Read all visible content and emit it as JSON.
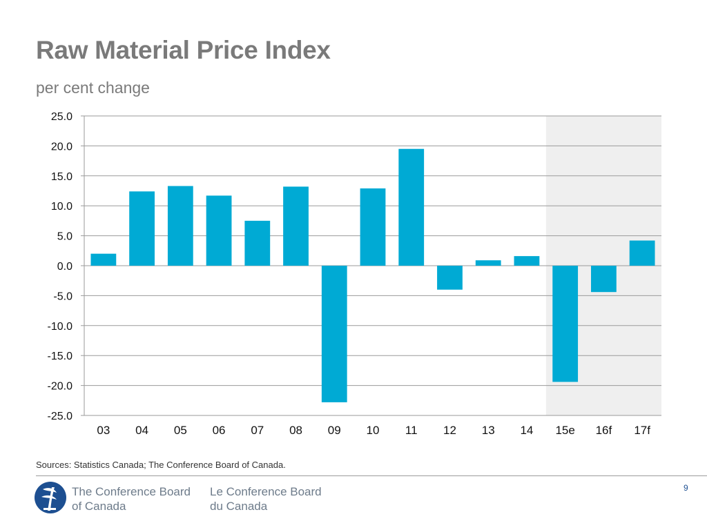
{
  "slide": {
    "title": "Raw Material Price Index",
    "subtitle": "per cent change",
    "sources": "Sources: Statistics Canada; The Conference Board of Canada.",
    "page_number": "9"
  },
  "organization": {
    "english_line1": "The Conference Board",
    "english_line2": "of Canada",
    "french_line1": "Le Conference Board",
    "french_line2": "du Canada"
  },
  "colors": {
    "bar": "#00aad4",
    "forecast_shade": "#efefef",
    "gridline": "#9a9a9a",
    "title": "#7a7a7a",
    "brand_blue": "#1d4f91"
  },
  "chart_data": {
    "type": "bar",
    "title": "Raw Material Price Index",
    "subtitle": "per cent change",
    "xlabel": "",
    "ylabel": "",
    "categories": [
      "03",
      "04",
      "05",
      "06",
      "07",
      "08",
      "09",
      "10",
      "11",
      "12",
      "13",
      "14",
      "15e",
      "16f",
      "17f"
    ],
    "values": [
      2.0,
      12.4,
      13.3,
      11.7,
      7.5,
      13.2,
      -22.8,
      12.9,
      19.5,
      -4.0,
      0.9,
      1.6,
      -19.4,
      -4.4,
      4.2
    ],
    "ylim": [
      -25,
      25
    ],
    "yticks": [
      25,
      20,
      15,
      10,
      5,
      0,
      -5,
      -10,
      -15,
      -20,
      -25
    ],
    "ytick_labels": [
      "25.0",
      "20.0",
      "15.0",
      "10.0",
      "5.0",
      "0.0",
      "-5.0",
      "-10.0",
      "-15.0",
      "-20.0",
      "-25.0"
    ],
    "grid": true,
    "shaded_categories": [
      "15e",
      "16f",
      "17f"
    ]
  }
}
